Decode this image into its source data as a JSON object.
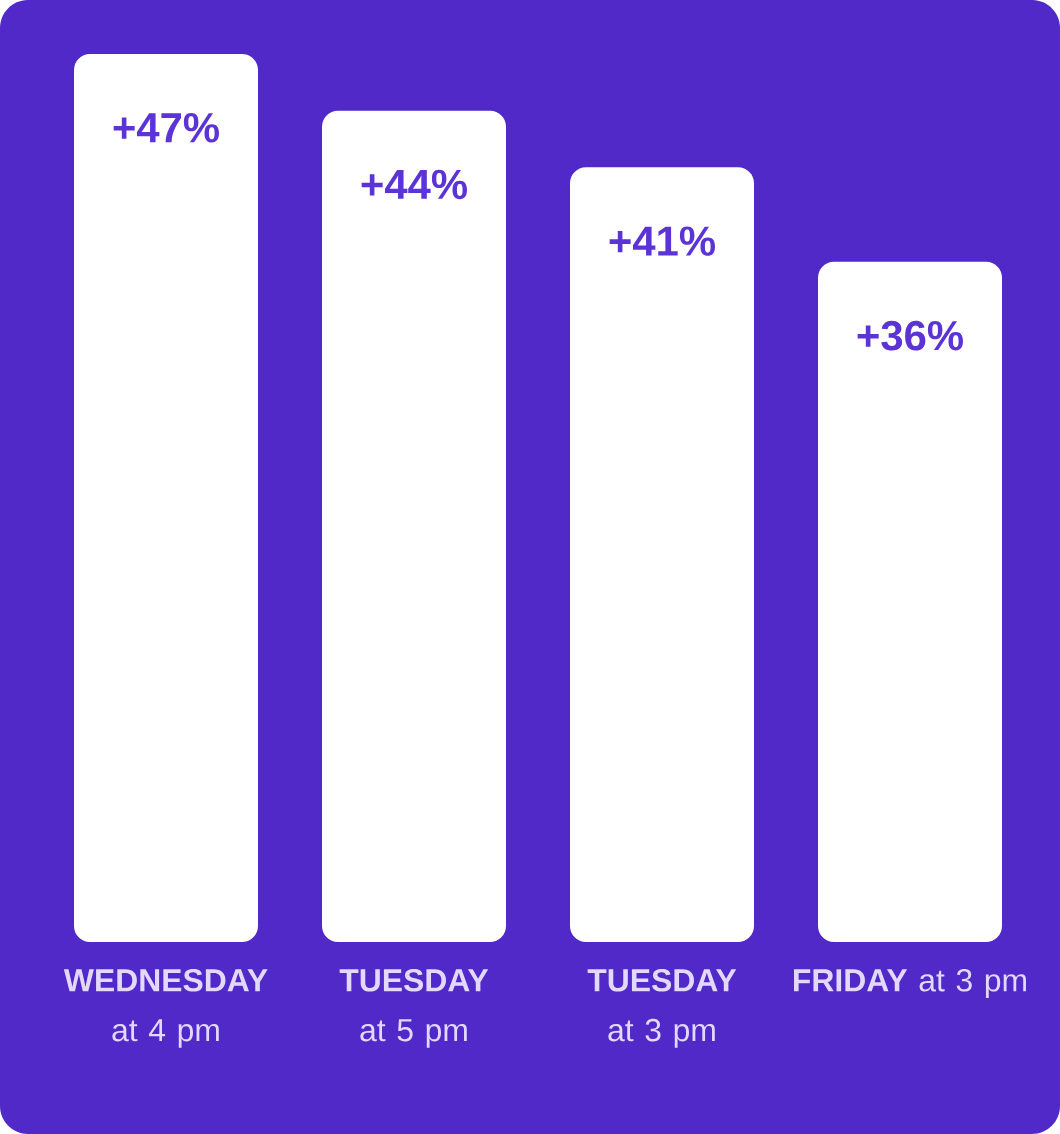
{
  "chart_data": {
    "type": "bar",
    "categories": [
      "**WEDNESDAY** at 4 pm",
      "**TUESDAY** at 5 pm",
      "**TUESDAY** at 3 pm",
      "**FRIDAY** at 3 pm"
    ],
    "values": [
      47,
      44,
      41,
      36
    ],
    "value_labels": [
      "+47%",
      "+44%",
      "+41%",
      "+36%"
    ],
    "color": "#ffffff"
  }
}
